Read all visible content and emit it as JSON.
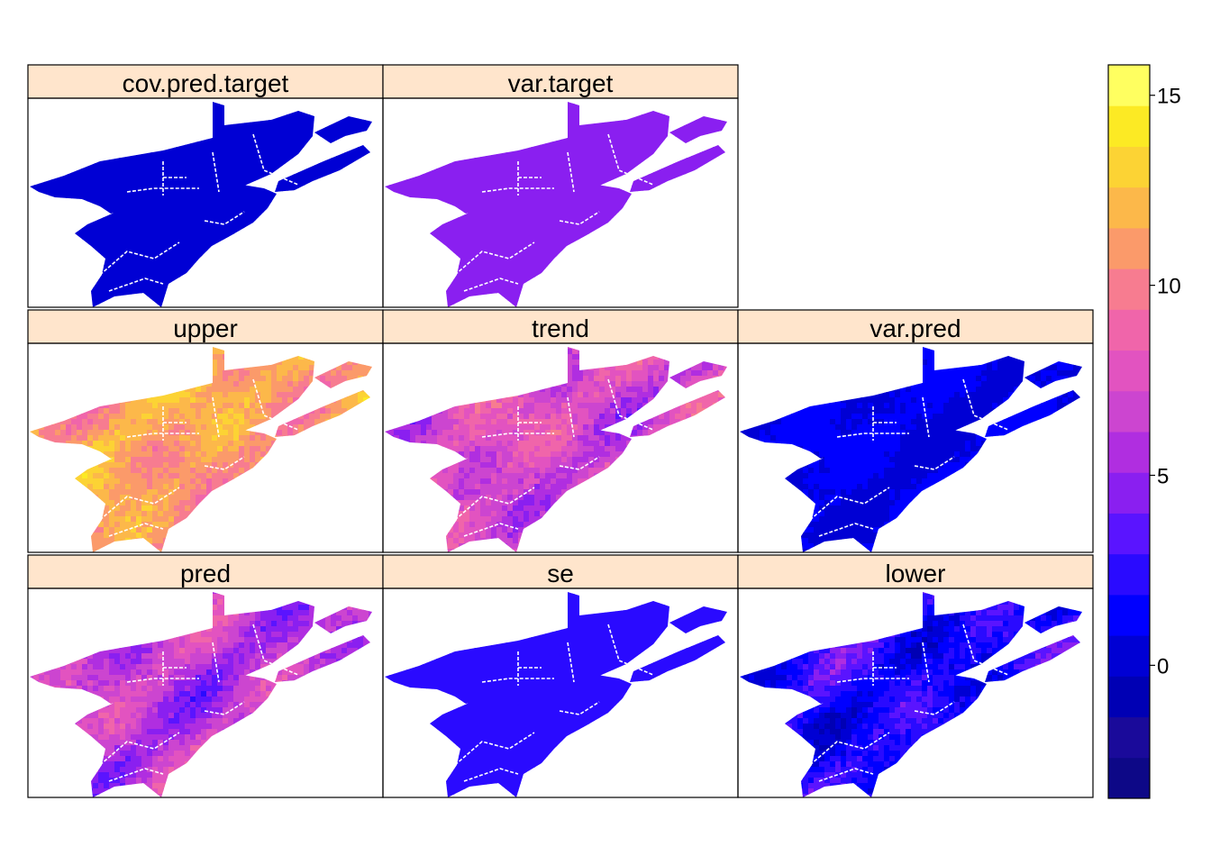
{
  "chart_data": {
    "type": "heatmap",
    "layout": {
      "columns": 3,
      "rows": 3
    },
    "panels": [
      {
        "name": "cov.pred.target",
        "row": 0,
        "col": 0,
        "mean_value": 0.3,
        "variability": 0.15
      },
      {
        "name": "var.target",
        "row": 0,
        "col": 1,
        "mean_value": 4.3,
        "variability": 0.05
      },
      {
        "name": "upper",
        "row": 1,
        "col": 0,
        "mean_value": 11.3,
        "variability": 1.4
      },
      {
        "name": "trend",
        "row": 1,
        "col": 1,
        "mean_value": 7.2,
        "variability": 1.6
      },
      {
        "name": "var.pred",
        "row": 1,
        "col": 2,
        "mean_value": 0.8,
        "variability": 0.15
      },
      {
        "name": "pred",
        "row": 2,
        "col": 0,
        "mean_value": 6.2,
        "variability": 1.5
      },
      {
        "name": "se",
        "row": 2,
        "col": 1,
        "mean_value": 2.1,
        "variability": 0.1
      },
      {
        "name": "lower",
        "row": 2,
        "col": 2,
        "mean_value": 2.0,
        "variability": 1.5
      }
    ],
    "colorkey": {
      "min": -3.5,
      "max": 15.8,
      "ticks": [
        0,
        5,
        10,
        15
      ],
      "tick_labels": [
        "0",
        "5",
        "10",
        "15"
      ],
      "colors": [
        "#0D0887",
        "#1A0A9A",
        "#0000B4",
        "#0000D4",
        "#0000FF",
        "#2A0AFF",
        "#5A14FF",
        "#8A1FF0",
        "#B02EE0",
        "#CC45D0",
        "#E253C0",
        "#F065AA",
        "#F77C90",
        "#FB9A6A",
        "#FCB84A",
        "#FCD334",
        "#FCEA24",
        "#FFFF60"
      ]
    }
  }
}
